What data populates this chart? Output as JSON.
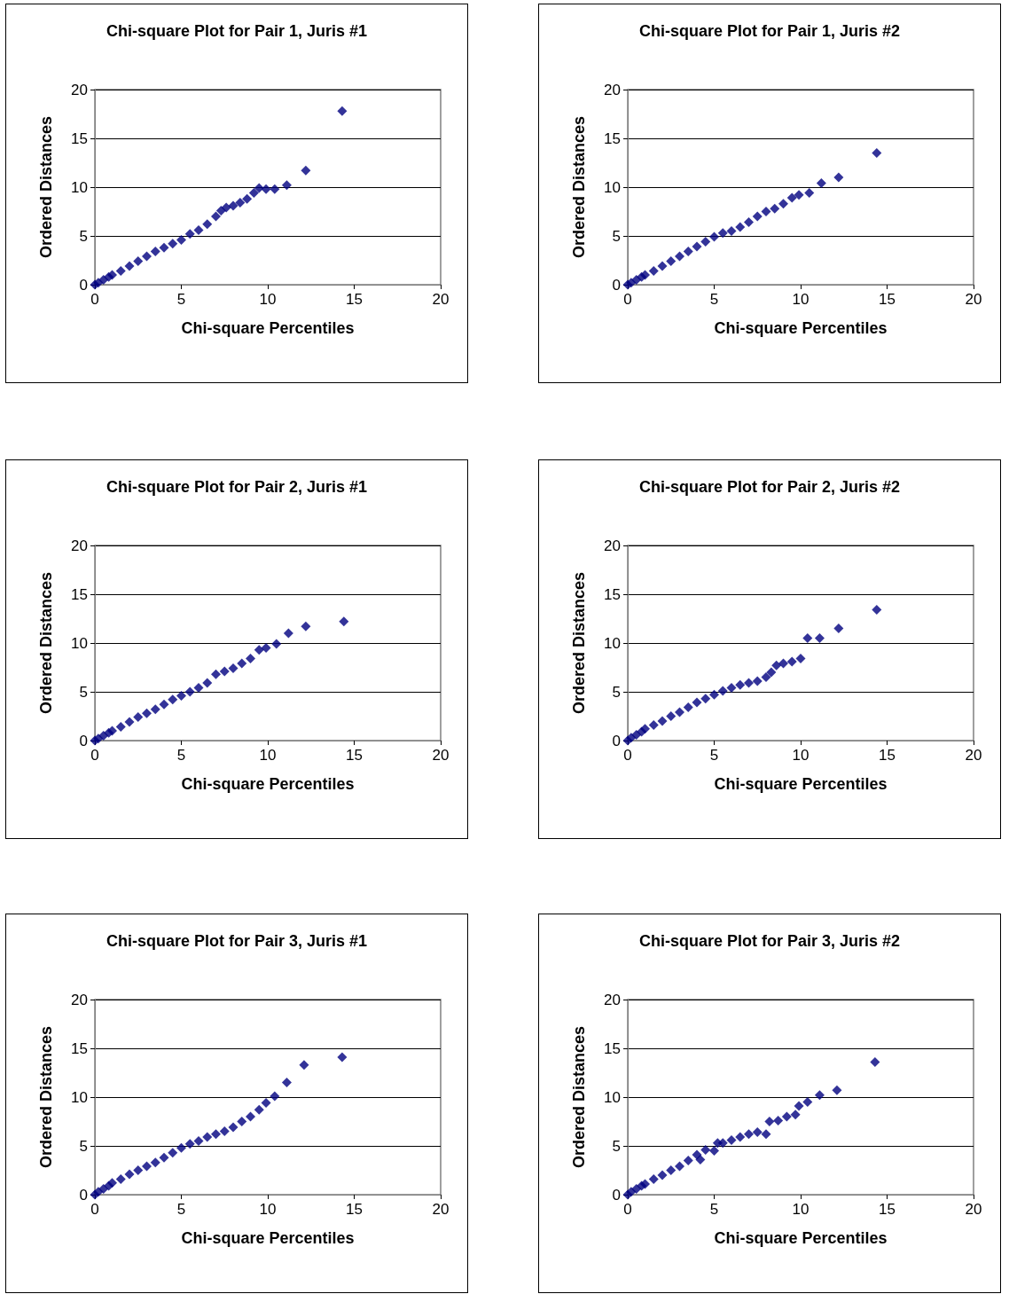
{
  "chart_data": [
    {
      "type": "scatter",
      "title": "Chi-square Plot for Pair 1, Juris #1",
      "xlabel": "Chi-square Percentiles",
      "ylabel": "Ordered Distances",
      "color": "#000080",
      "marker": "diamond",
      "grid": "y",
      "xlim": [
        0,
        20
      ],
      "ylim": [
        0,
        20
      ],
      "xticks": [
        0,
        5,
        10,
        15,
        20
      ],
      "yticks": [
        0,
        5,
        10,
        15,
        20
      ],
      "x": [
        0,
        0.2,
        0.5,
        0.8,
        1,
        1.5,
        2,
        2.5,
        3,
        3.5,
        4,
        4.5,
        5,
        5.5,
        6,
        6.5,
        7,
        7.3,
        7.6,
        8,
        8.4,
        8.8,
        9.2,
        9.5,
        9.9,
        10.4,
        11.1,
        12.2,
        14.3
      ],
      "values": [
        0,
        0.2,
        0.5,
        0.8,
        1,
        1.4,
        1.9,
        2.4,
        2.9,
        3.4,
        3.8,
        4.2,
        4.6,
        5.2,
        5.6,
        6.2,
        7,
        7.6,
        7.9,
        8.1,
        8.4,
        8.8,
        9.4,
        9.9,
        9.8,
        9.8,
        10.2,
        11.7,
        17.8
      ]
    },
    {
      "type": "scatter",
      "title": "Chi-square Plot for Pair 1, Juris #2",
      "xlabel": "Chi-square Percentiles",
      "ylabel": "Ordered Distances",
      "color": "#000080",
      "marker": "diamond",
      "grid": "y",
      "xlim": [
        0,
        20
      ],
      "ylim": [
        0,
        20
      ],
      "xticks": [
        0,
        5,
        10,
        15,
        20
      ],
      "yticks": [
        0,
        5,
        10,
        15,
        20
      ],
      "x": [
        0,
        0.2,
        0.5,
        0.8,
        1,
        1.5,
        2,
        2.5,
        3,
        3.5,
        4,
        4.5,
        5,
        5.5,
        6,
        6.5,
        7,
        7.5,
        8,
        8.5,
        9,
        9.5,
        9.9,
        10.5,
        11.2,
        12.2,
        14.4
      ],
      "values": [
        0,
        0.2,
        0.5,
        0.8,
        1,
        1.4,
        1.9,
        2.4,
        2.9,
        3.4,
        3.9,
        4.4,
        4.9,
        5.3,
        5.5,
        5.9,
        6.4,
        7,
        7.5,
        7.8,
        8.3,
        8.9,
        9.2,
        9.4,
        10.4,
        11,
        13.5
      ]
    },
    {
      "type": "scatter",
      "title": "Chi-square Plot for Pair 2, Juris #1",
      "xlabel": "Chi-square Percentiles",
      "ylabel": "Ordered Distances",
      "color": "#000080",
      "marker": "diamond",
      "grid": "y",
      "xlim": [
        0,
        20
      ],
      "ylim": [
        0,
        20
      ],
      "xticks": [
        0,
        5,
        10,
        15,
        20
      ],
      "yticks": [
        0,
        5,
        10,
        15,
        20
      ],
      "x": [
        0,
        0.2,
        0.5,
        0.8,
        1,
        1.5,
        2,
        2.5,
        3,
        3.5,
        4,
        4.5,
        5,
        5.5,
        6,
        6.5,
        7,
        7.5,
        8,
        8.5,
        9,
        9.5,
        9.9,
        10.5,
        11.2,
        12.2,
        14.4
      ],
      "values": [
        0,
        0.2,
        0.5,
        0.8,
        1,
        1.4,
        1.9,
        2.4,
        2.8,
        3.2,
        3.7,
        4.2,
        4.6,
        5,
        5.4,
        5.9,
        6.8,
        7.1,
        7.4,
        7.9,
        8.4,
        9.3,
        9.5,
        9.9,
        11,
        11.7,
        12.2
      ]
    },
    {
      "type": "scatter",
      "title": "Chi-square Plot for Pair 2, Juris #2",
      "xlabel": "Chi-square Percentiles",
      "ylabel": "Ordered Distances",
      "color": "#000080",
      "marker": "diamond",
      "grid": "y",
      "xlim": [
        0,
        20
      ],
      "ylim": [
        0,
        20
      ],
      "xticks": [
        0,
        5,
        10,
        15,
        20
      ],
      "yticks": [
        0,
        5,
        10,
        15,
        20
      ],
      "x": [
        0,
        0.2,
        0.5,
        0.8,
        1,
        1.5,
        2,
        2.5,
        3,
        3.5,
        4,
        4.5,
        5,
        5.5,
        6,
        6.5,
        7,
        7.5,
        8,
        8.3,
        8.6,
        9,
        9.5,
        10,
        10.4,
        11.1,
        12.2,
        14.4
      ],
      "values": [
        0,
        0.3,
        0.6,
        0.9,
        1.2,
        1.6,
        2,
        2.5,
        2.9,
        3.4,
        3.9,
        4.3,
        4.7,
        5.1,
        5.4,
        5.7,
        5.9,
        6.1,
        6.5,
        7,
        7.7,
        7.9,
        8.1,
        8.4,
        10.5,
        10.5,
        11.5,
        13.4
      ]
    },
    {
      "type": "scatter",
      "title": "Chi-square Plot for Pair 3, Juris #1",
      "xlabel": "Chi-square Percentiles",
      "ylabel": "Ordered Distances",
      "color": "#000080",
      "marker": "diamond",
      "grid": "y",
      "xlim": [
        0,
        20
      ],
      "ylim": [
        0,
        20
      ],
      "xticks": [
        0,
        5,
        10,
        15,
        20
      ],
      "yticks": [
        0,
        5,
        10,
        15,
        20
      ],
      "x": [
        0,
        0.2,
        0.5,
        0.8,
        1,
        1.5,
        2,
        2.5,
        3,
        3.5,
        4,
        4.5,
        5,
        5.5,
        6,
        6.5,
        7,
        7.5,
        8,
        8.5,
        9,
        9.5,
        9.9,
        10.4,
        11.1,
        12.1,
        14.3
      ],
      "values": [
        0,
        0.3,
        0.6,
        0.9,
        1.2,
        1.6,
        2.1,
        2.5,
        2.9,
        3.3,
        3.8,
        4.3,
        4.8,
        5.2,
        5.5,
        5.9,
        6.2,
        6.5,
        6.9,
        7.5,
        8,
        8.7,
        9.4,
        10.1,
        11.5,
        13.3,
        14.1
      ]
    },
    {
      "type": "scatter",
      "title": "Chi-square Plot for Pair 3, Juris #2",
      "xlabel": "Chi-square Percentiles",
      "ylabel": "Ordered Distances",
      "color": "#000080",
      "marker": "diamond",
      "grid": "y",
      "xlim": [
        0,
        20
      ],
      "ylim": [
        0,
        20
      ],
      "xticks": [
        0,
        5,
        10,
        15,
        20
      ],
      "yticks": [
        0,
        5,
        10,
        15,
        20
      ],
      "x": [
        0,
        0.2,
        0.5,
        0.8,
        1,
        1.5,
        2,
        2.5,
        3,
        3.5,
        4,
        4.2,
        4.5,
        5,
        5.2,
        5.5,
        6,
        6.5,
        7,
        7.5,
        8,
        8.2,
        8.7,
        9.2,
        9.7,
        9.9,
        10.4,
        11.1,
        12.1,
        14.3
      ],
      "values": [
        0,
        0.3,
        0.6,
        0.9,
        1.1,
        1.6,
        2,
        2.5,
        2.9,
        3.5,
        4.1,
        3.6,
        4.6,
        4.5,
        5.3,
        5.3,
        5.6,
        5.9,
        6.2,
        6.4,
        6.2,
        7.5,
        7.6,
        8,
        8.2,
        9.1,
        9.5,
        10.2,
        10.7,
        13.6
      ]
    }
  ]
}
